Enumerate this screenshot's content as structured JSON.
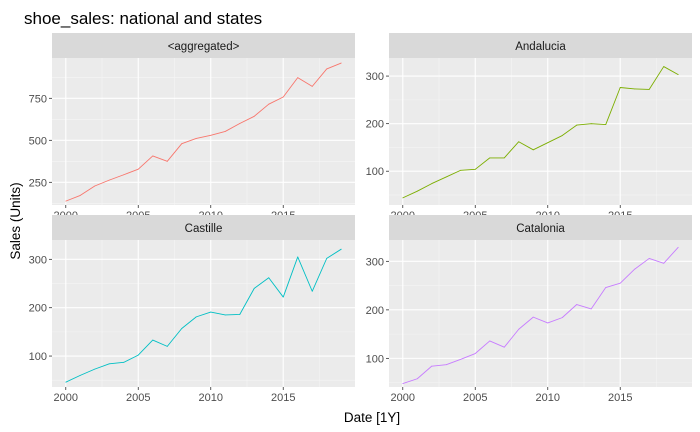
{
  "chart_data": {
    "type": "line",
    "title": "shoe_sales: national and states",
    "xlabel": "Date [1Y]",
    "ylabel": "Sales (Units)",
    "grid": true,
    "legend": "none",
    "x": [
      2000,
      2001,
      2002,
      2003,
      2004,
      2005,
      2006,
      2007,
      2008,
      2009,
      2010,
      2011,
      2012,
      2013,
      2014,
      2015,
      2016,
      2017,
      2018,
      2019
    ],
    "x_ticks": [
      2000,
      2005,
      2010,
      2015
    ],
    "panels": [
      {
        "name": "<aggregated>",
        "color": "#F8766D",
        "xlim": [
          1999.05,
          2019.95
        ],
        "ylim": [
          115,
          990
        ],
        "y_ticks": [
          250,
          500,
          750
        ],
        "values": [
          138,
          172,
          228,
          263,
          295,
          328,
          407,
          375,
          480,
          511,
          530,
          553,
          600,
          643,
          715,
          758,
          873,
          821,
          925,
          960
        ]
      },
      {
        "name": "Andalucia",
        "color": "#7CAE00",
        "xlim": [
          1999.05,
          2019.95
        ],
        "ylim": [
          29,
          338
        ],
        "y_ticks": [
          100,
          200,
          300
        ],
        "values": [
          44,
          58,
          74,
          88,
          102,
          104,
          128,
          128,
          162,
          145,
          160,
          175,
          197,
          200,
          198,
          276,
          273,
          272,
          320,
          303
        ]
      },
      {
        "name": "Castille",
        "color": "#00BFC4",
        "xlim": [
          1999.05,
          2019.95
        ],
        "ylim": [
          36,
          340
        ],
        "y_ticks": [
          100,
          200,
          300
        ],
        "values": [
          46,
          60,
          73,
          84,
          87,
          102,
          133,
          120,
          157,
          181,
          191,
          185,
          186,
          240,
          262,
          222,
          305,
          234,
          302,
          321
        ]
      },
      {
        "name": "Catalonia",
        "color": "#C77CFF",
        "xlim": [
          1999.05,
          2019.95
        ],
        "ylim": [
          41,
          344
        ],
        "y_ticks": [
          100,
          200,
          300
        ],
        "values": [
          48,
          58,
          84,
          87,
          98,
          110,
          136,
          123,
          160,
          185,
          173,
          184,
          211,
          202,
          246,
          255,
          284,
          306,
          296,
          329
        ]
      }
    ]
  }
}
